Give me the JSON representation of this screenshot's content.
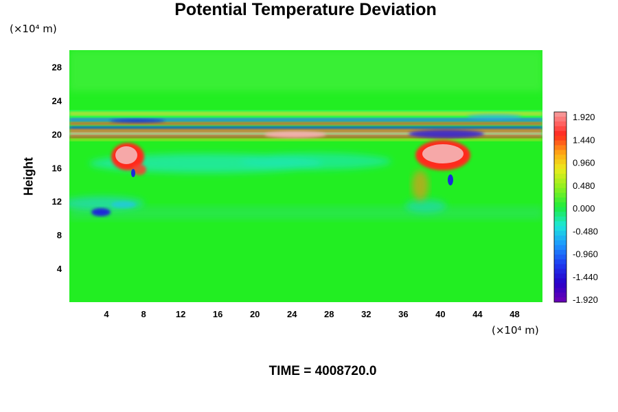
{
  "chart_data": {
    "type": "heatmap",
    "title": "Potential Temperature Deviation",
    "ylabel": "Height",
    "xlabel": "",
    "x_unit": "(×10⁴ m)",
    "y_unit": "(×10⁴ m)",
    "x_range": [
      0,
      51
    ],
    "y_range": [
      0,
      30
    ],
    "x_ticks": [
      4,
      8,
      12,
      16,
      20,
      24,
      28,
      32,
      36,
      40,
      44,
      48
    ],
    "y_ticks": [
      4,
      8,
      12,
      16,
      20,
      24,
      28
    ],
    "background_level": 0.0,
    "features": [
      {
        "name": "upper band",
        "x": [
          0,
          51
        ],
        "y": [
          19.2,
          22.6
        ],
        "value_range": [
          -1.92,
          1.92
        ]
      },
      {
        "name": "warm anomaly west",
        "x": [
          5,
          8
        ],
        "y": [
          16,
          19
        ],
        "value": 1.92
      },
      {
        "name": "warm anomaly east",
        "x": [
          37.5,
          43
        ],
        "y": [
          16,
          19.5
        ],
        "value": 1.92
      },
      {
        "name": "cool anomaly west",
        "x": [
          2,
          7
        ],
        "y": [
          10,
          12
        ],
        "value": -1.44
      },
      {
        "name": "cool band",
        "x": [
          8,
          36
        ],
        "y": [
          15,
          17.5
        ],
        "value": -0.72
      }
    ],
    "colorbar": {
      "ticks": [
        "1.920",
        "1.440",
        "0.960",
        "0.480",
        "0.000",
        "-0.480",
        "-0.960",
        "-1.440",
        "-1.920"
      ],
      "min": -1.92,
      "max": 1.92
    },
    "footer": "TIME = 4008720.0"
  }
}
